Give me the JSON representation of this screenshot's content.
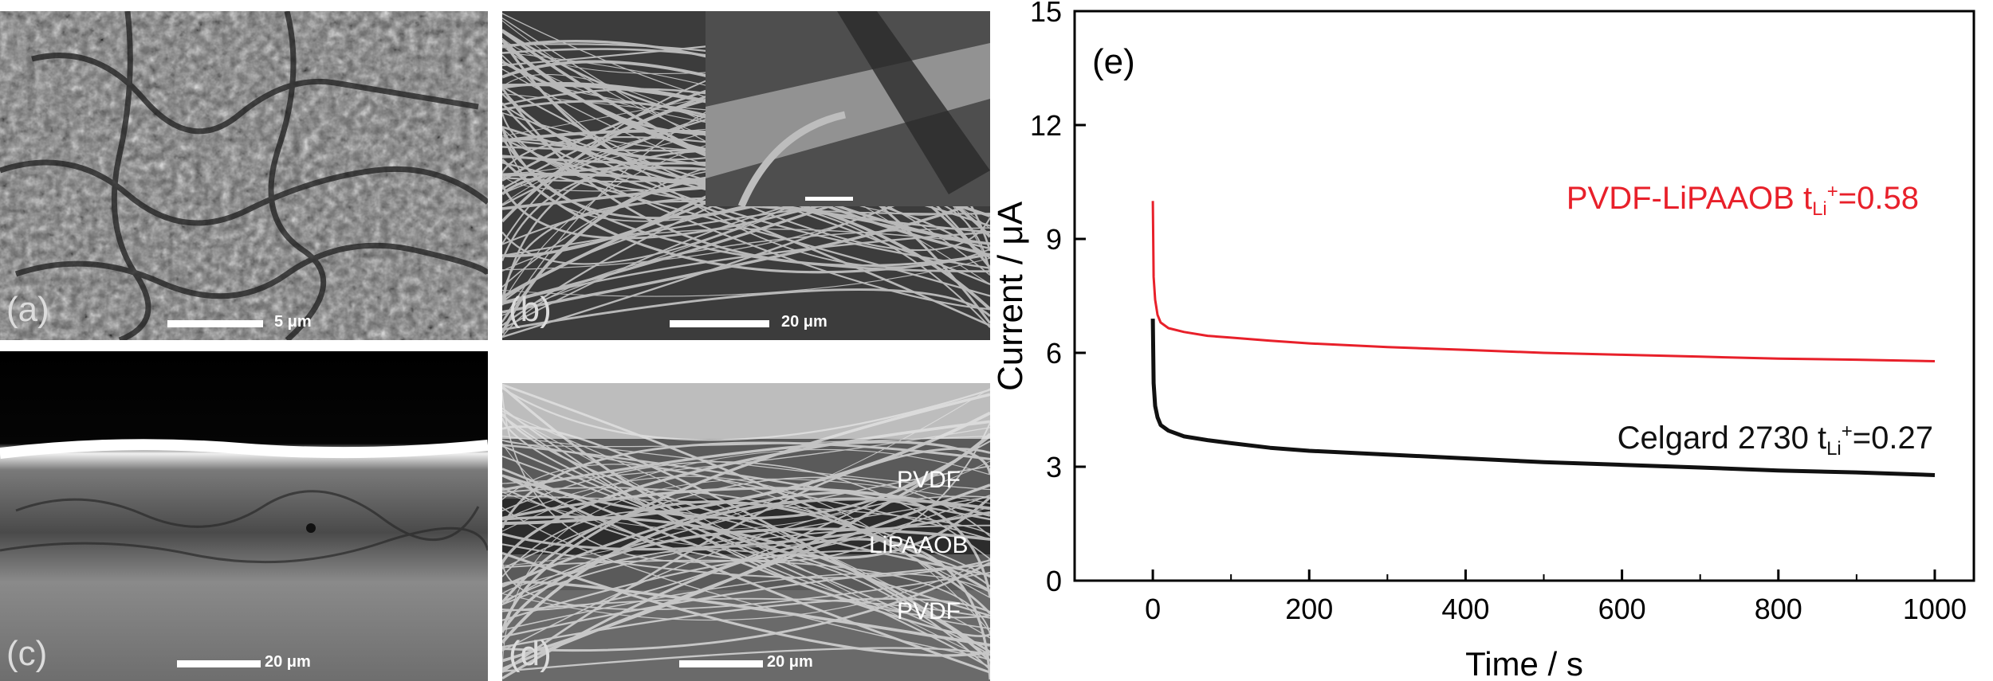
{
  "figure": {
    "panels": [
      {
        "id": "a",
        "label": "(a)",
        "scale_bar": "5 μm"
      },
      {
        "id": "b",
        "label": "(b)",
        "scale_bar": "20 μm"
      },
      {
        "id": "c",
        "label": "(c)",
        "scale_bar": "20 μm"
      },
      {
        "id": "d",
        "label": "(d)",
        "scale_bar": "20 μm",
        "layer_labels": [
          "PVDF",
          "LiPAAOB",
          "PVDF"
        ]
      }
    ]
  },
  "chart_data": {
    "type": "line",
    "panel_label": "(e)",
    "xlabel": "Time / s",
    "ylabel": "Current / μA",
    "xlim": [
      -100,
      1050
    ],
    "ylim": [
      0,
      15
    ],
    "xticks": [
      0,
      200,
      400,
      600,
      800,
      1000
    ],
    "yticks": [
      0,
      3,
      6,
      9,
      12,
      15
    ],
    "grid": false,
    "series": [
      {
        "name": "PVDF-LiPAAOB",
        "annotation": {
          "prefix": "PVDF-LiPAAOB t",
          "subscript": "Li",
          "superscript": "+",
          "suffix": "=0.58"
        },
        "color": "#e8202a",
        "x": [
          0,
          1,
          3,
          6,
          10,
          20,
          40,
          70,
          100,
          150,
          200,
          300,
          400,
          500,
          600,
          700,
          800,
          900,
          1000
        ],
        "y": [
          10.0,
          8.0,
          7.4,
          7.0,
          6.8,
          6.65,
          6.55,
          6.45,
          6.4,
          6.32,
          6.25,
          6.15,
          6.08,
          6.0,
          5.95,
          5.9,
          5.85,
          5.82,
          5.78
        ]
      },
      {
        "name": "Celgard 2730",
        "annotation": {
          "prefix": "Celgard 2730 t",
          "subscript": "Li",
          "superscript": "+",
          "suffix": "=0.27"
        },
        "color": "#111111",
        "x": [
          0,
          1,
          3,
          6,
          10,
          20,
          40,
          70,
          100,
          150,
          200,
          300,
          400,
          500,
          600,
          700,
          800,
          900,
          1000
        ],
        "y": [
          6.9,
          5.2,
          4.6,
          4.3,
          4.1,
          3.95,
          3.8,
          3.7,
          3.62,
          3.5,
          3.42,
          3.32,
          3.22,
          3.12,
          3.05,
          2.98,
          2.9,
          2.85,
          2.78
        ]
      }
    ]
  }
}
